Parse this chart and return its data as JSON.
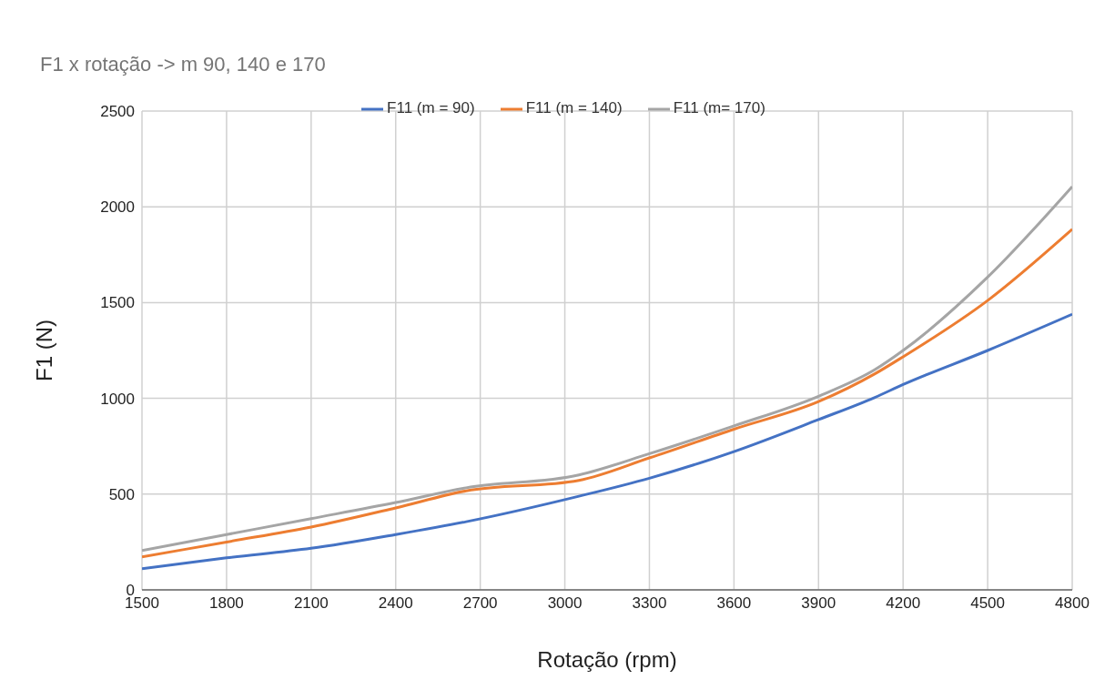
{
  "chart_data": {
    "type": "line",
    "title": "F1 x rotação -> m 90, 140 e 170",
    "xlabel": "Rotação (rpm)",
    "ylabel": "F1 (N)",
    "x": [
      1500,
      1800,
      2100,
      2400,
      2650,
      3050,
      3300,
      3600,
      3900,
      4100,
      4200,
      4500,
      4800
    ],
    "series": [
      {
        "name": "F11 (m = 90)",
        "color": "#4472c4",
        "values": [
          111,
          167,
          217,
          289,
          356,
          489,
          583,
          722,
          889,
          1005,
          1072,
          1250,
          1439
        ]
      },
      {
        "name": "F11 (m = 140)",
        "color": "#ed7d31",
        "values": [
          172,
          250,
          328,
          428,
          517,
          572,
          689,
          839,
          983,
          1128,
          1217,
          1511,
          1883
        ]
      },
      {
        "name": "F11 (m= 170)",
        "color": "#a5a5a5",
        "values": [
          206,
          289,
          372,
          456,
          533,
          600,
          711,
          856,
          1011,
          1150,
          1250,
          1633,
          2106
        ]
      }
    ],
    "xlim": [
      1500,
      4800
    ],
    "xticks": [
      1500,
      1800,
      2100,
      2400,
      2700,
      3000,
      3300,
      3600,
      3900,
      4200,
      4500,
      4800
    ],
    "ylim": [
      0,
      2500
    ],
    "yticks": [
      0,
      500,
      1000,
      1500,
      2000,
      2500
    ],
    "grid": true,
    "legend": "top",
    "marker": "none",
    "line_style": "solid"
  }
}
